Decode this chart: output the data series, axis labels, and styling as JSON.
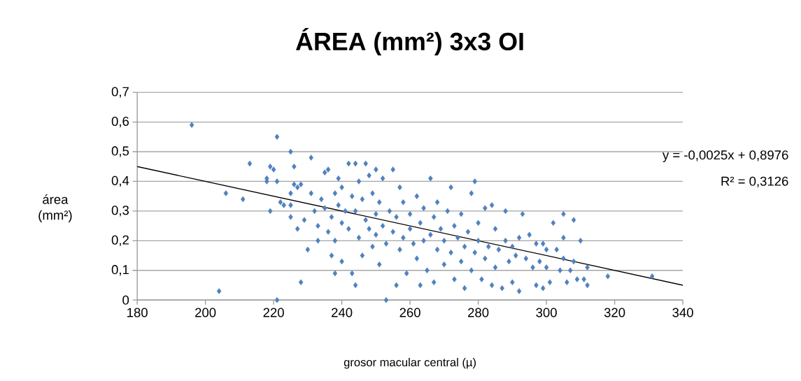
{
  "chart_data": {
    "type": "scatter",
    "title": "ÁREA (mm²) 3x3 OI",
    "xlabel": "grosor macular central (µ)",
    "ylabel": "área (mm²)",
    "xlim": [
      180,
      340
    ],
    "xticks": [
      180,
      200,
      220,
      240,
      260,
      280,
      300,
      320,
      340
    ],
    "ylim": [
      0,
      0.7
    ],
    "yticks": [
      {
        "value": 0,
        "label": "0"
      },
      {
        "value": 0.1,
        "label": "0,1"
      },
      {
        "value": 0.2,
        "label": "0,2"
      },
      {
        "value": 0.3,
        "label": "0,3"
      },
      {
        "value": 0.4,
        "label": "0,4"
      },
      {
        "value": 0.5,
        "label": "0,5"
      },
      {
        "value": 0.6,
        "label": "0,6"
      },
      {
        "value": 0.7,
        "label": "0,7"
      }
    ],
    "grid": "y",
    "annotations": [
      "y = -0,0025x + 0,8976",
      "R² = 0,3126"
    ],
    "series": [
      {
        "marker": "diamond",
        "color": "#4f81bd",
        "x": [
          196,
          204,
          206,
          211,
          213,
          218,
          218,
          219,
          219,
          220,
          221,
          221,
          221,
          222,
          223,
          225,
          225,
          225,
          225,
          226,
          226,
          227,
          227,
          228,
          228,
          229,
          230,
          231,
          231,
          232,
          233,
          233,
          234,
          235,
          235,
          236,
          236,
          237,
          237,
          238,
          238,
          238,
          239,
          239,
          240,
          240,
          240,
          241,
          242,
          242,
          243,
          243,
          244,
          244,
          244,
          245,
          245,
          246,
          246,
          247,
          247,
          248,
          248,
          249,
          249,
          250,
          250,
          250,
          251,
          251,
          252,
          252,
          253,
          253,
          254,
          255,
          255,
          256,
          256,
          257,
          257,
          258,
          258,
          259,
          260,
          260,
          261,
          262,
          262,
          263,
          263,
          264,
          264,
          265,
          266,
          266,
          267,
          267,
          268,
          268,
          269,
          270,
          270,
          271,
          272,
          272,
          273,
          273,
          274,
          275,
          275,
          276,
          276,
          277,
          278,
          278,
          279,
          279,
          280,
          280,
          281,
          282,
          282,
          283,
          284,
          284,
          285,
          285,
          286,
          287,
          288,
          288,
          289,
          290,
          290,
          291,
          292,
          292,
          293,
          294,
          295,
          296,
          297,
          297,
          298,
          299,
          299,
          300,
          300,
          301,
          302,
          303,
          304,
          305,
          305,
          305,
          306,
          307,
          308,
          308,
          309,
          310,
          311,
          312,
          312,
          318,
          331
        ],
        "values": [
          0.59,
          0.03,
          0.36,
          0.34,
          0.46,
          0.41,
          0.4,
          0.45,
          0.3,
          0.44,
          0.55,
          0.0,
          0.4,
          0.33,
          0.32,
          0.5,
          0.36,
          0.32,
          0.28,
          0.45,
          0.39,
          0.38,
          0.24,
          0.39,
          0.06,
          0.27,
          0.17,
          0.48,
          0.36,
          0.3,
          0.25,
          0.2,
          0.34,
          0.43,
          0.31,
          0.44,
          0.23,
          0.15,
          0.28,
          0.36,
          0.2,
          0.09,
          0.41,
          0.32,
          0.13,
          0.26,
          0.38,
          0.3,
          0.46,
          0.24,
          0.35,
          0.09,
          0.46,
          0.05,
          0.3,
          0.4,
          0.21,
          0.34,
          0.15,
          0.46,
          0.27,
          0.42,
          0.24,
          0.36,
          0.18,
          0.44,
          0.29,
          0.22,
          0.12,
          0.33,
          0.41,
          0.25,
          0.0,
          0.19,
          0.3,
          0.44,
          0.23,
          0.28,
          0.05,
          0.38,
          0.17,
          0.33,
          0.21,
          0.09,
          0.29,
          0.24,
          0.19,
          0.35,
          0.14,
          0.05,
          0.26,
          0.31,
          0.2,
          0.1,
          0.41,
          0.22,
          0.06,
          0.28,
          0.17,
          0.33,
          0.24,
          0.12,
          0.2,
          0.3,
          0.38,
          0.16,
          0.07,
          0.25,
          0.21,
          0.13,
          0.29,
          0.04,
          0.18,
          0.23,
          0.36,
          0.1,
          0.4,
          0.16,
          0.26,
          0.2,
          0.07,
          0.31,
          0.14,
          0.18,
          0.32,
          0.05,
          0.24,
          0.11,
          0.17,
          0.04,
          0.3,
          0.2,
          0.13,
          0.06,
          0.18,
          0.15,
          0.03,
          0.21,
          0.29,
          0.14,
          0.22,
          0.11,
          0.05,
          0.19,
          0.13,
          0.04,
          0.19,
          0.11,
          0.17,
          0.06,
          0.26,
          0.17,
          0.1,
          0.29,
          0.21,
          0.14,
          0.06,
          0.1,
          0.27,
          0.13,
          0.07,
          0.2,
          0.07,
          0.05,
          0.11,
          0.08,
          0.08
        ]
      },
      {
        "type": "line",
        "marker": "none",
        "color": "#000000",
        "x": [
          180,
          340
        ],
        "values": [
          0.45,
          0.05
        ]
      }
    ]
  }
}
